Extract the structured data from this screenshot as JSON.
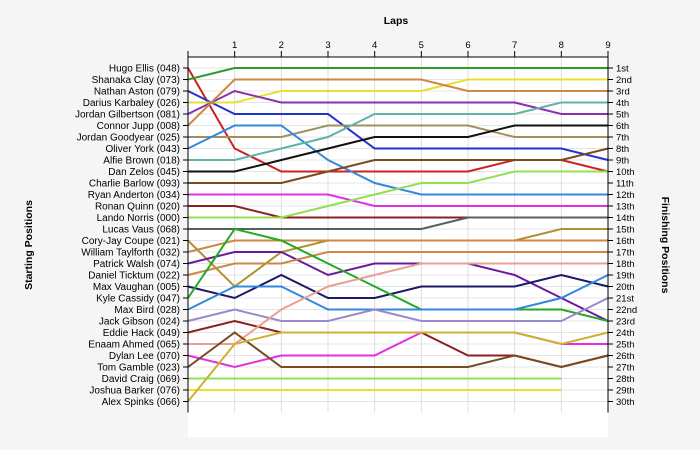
{
  "chart_data": {
    "type": "line",
    "title": "",
    "xlabel": "Laps",
    "ylabel_left": "Starting Positions",
    "ylabel_right": "Finishing Positions",
    "x_ticks": [
      1,
      2,
      3,
      4,
      5,
      6,
      7,
      8,
      9
    ],
    "xlim": [
      0,
      9
    ],
    "ylim": [
      1,
      30
    ],
    "grid": true,
    "finishing_positions": [
      "1st",
      "2nd",
      "3rd",
      "4th",
      "5th",
      "6th",
      "7th",
      "8th",
      "9th",
      "10th",
      "11th",
      "12th",
      "13th",
      "14th",
      "15th",
      "16th",
      "17th",
      "18th",
      "19th",
      "20th",
      "21st",
      "22nd",
      "23rd",
      "24th",
      "25th",
      "26th",
      "27th",
      "28th",
      "29th",
      "30th"
    ],
    "series": [
      {
        "name": "Hugo Ellis (048)",
        "color": "#cc2222",
        "values": [
          1,
          8,
          10,
          10,
          10,
          10,
          10,
          9,
          9,
          10
        ]
      },
      {
        "name": "Shanaka Clay (073)",
        "color": "#2e9a2e",
        "values": [
          2,
          1,
          1,
          1,
          1,
          1,
          1,
          1,
          1,
          1
        ]
      },
      {
        "name": "Nathan Aston (079)",
        "color": "#2233cc",
        "values": [
          3,
          5,
          5,
          5,
          8,
          8,
          8,
          8,
          8,
          9
        ]
      },
      {
        "name": "Darius Karbaley (026)",
        "color": "#e8e030",
        "values": [
          4,
          4,
          3,
          3,
          3,
          3,
          2,
          2,
          2,
          2
        ]
      },
      {
        "name": "Jordan Gilbertson (081)",
        "color": "#8b2eb0",
        "values": [
          5,
          3,
          4,
          4,
          4,
          4,
          4,
          4,
          5,
          5
        ]
      },
      {
        "name": "Connor Jupp (008)",
        "color": "#cc8844",
        "values": [
          6,
          2,
          2,
          2,
          2,
          2,
          3,
          3,
          3,
          3
        ]
      },
      {
        "name": "Jordan Goodyear (025)",
        "color": "#a09060",
        "values": [
          7,
          7,
          7,
          6,
          6,
          6,
          6,
          7,
          7,
          7
        ]
      },
      {
        "name": "Oliver York (043)",
        "color": "#3388dd",
        "values": [
          8,
          6,
          6,
          9,
          11,
          12,
          12,
          12,
          12,
          12
        ]
      },
      {
        "name": "Alfie Brown (018)",
        "color": "#5fb3a8",
        "values": [
          9,
          9,
          8,
          7,
          5,
          5,
          5,
          5,
          4,
          4
        ]
      },
      {
        "name": "Dan Zelos (045)",
        "color": "#111111",
        "values": [
          10,
          10,
          9,
          8,
          7,
          7,
          7,
          6,
          6,
          6
        ]
      },
      {
        "name": "Charlie Barlow (093)",
        "color": "#7a4a20",
        "values": [
          11,
          11,
          11,
          10,
          9,
          9,
          9,
          9,
          9,
          8
        ]
      },
      {
        "name": "Ryan Anderton (034)",
        "color": "#e030e0",
        "values": [
          12,
          12,
          12,
          12,
          13,
          13,
          13,
          13,
          13,
          13
        ]
      },
      {
        "name": "Ronan Quinn (020)",
        "color": "#8b2020",
        "values": [
          13,
          13,
          14,
          14,
          14,
          14,
          14,
          14,
          14,
          14
        ]
      },
      {
        "name": "Lando Norris (000)",
        "color": "#90e050",
        "values": [
          14,
          14,
          14,
          13,
          12,
          11,
          11,
          10,
          10,
          10
        ]
      },
      {
        "name": "Lucas Vaus (068)",
        "color": "#556060",
        "values": [
          15,
          15,
          15,
          15,
          15,
          15,
          14,
          14,
          14,
          14
        ]
      },
      {
        "name": "Cory-Jay Coupe (021)",
        "color": "#b09030",
        "values": [
          16,
          20,
          17,
          16,
          16,
          16,
          16,
          16,
          15,
          15
        ]
      },
      {
        "name": "William Taylforth (032)",
        "color": "#cc8844",
        "values": [
          17,
          16,
          16,
          16,
          16,
          16,
          16,
          16,
          16,
          16
        ]
      },
      {
        "name": "Patrick Walsh (074)",
        "color": "#6a1aa0",
        "values": [
          18,
          17,
          17,
          19,
          18,
          18,
          18,
          19,
          21,
          23
        ]
      },
      {
        "name": "Daniel Ticktum (022)",
        "color": "#cc8844",
        "values": [
          19,
          18,
          18,
          17,
          17,
          17,
          17,
          17,
          17,
          17
        ]
      },
      {
        "name": "Max Vaughan (005)",
        "color": "#1a1a66",
        "values": [
          20,
          21,
          19,
          21,
          21,
          20,
          20,
          20,
          19,
          20
        ]
      },
      {
        "name": "Kyle Cassidy (047)",
        "color": "#22aa22",
        "values": [
          21,
          15,
          16,
          18,
          20,
          22,
          22,
          22,
          22,
          23
        ]
      },
      {
        "name": "Max Bird (028)",
        "color": "#3388dd",
        "values": [
          22,
          20,
          20,
          22,
          22,
          22,
          22,
          22,
          21,
          19
        ]
      },
      {
        "name": "Jack Gibson (024)",
        "color": "#9988cc",
        "values": [
          23,
          22,
          23,
          23,
          22,
          23,
          23,
          23,
          23,
          21
        ]
      },
      {
        "name": "Eddie Hack (049)",
        "color": "#8b2020",
        "values": [
          24,
          23,
          24,
          24,
          24,
          24,
          26,
          26,
          27,
          26
        ]
      },
      {
        "name": "Enaam Ahmed (065)",
        "color": "#e8a090",
        "values": [
          25,
          25,
          22,
          20,
          19,
          18,
          18,
          18,
          18,
          18
        ]
      },
      {
        "name": "Dylan Lee (070)",
        "color": "#e030e0",
        "values": [
          26,
          27,
          26,
          26,
          26,
          24,
          24,
          24,
          25,
          25
        ]
      },
      {
        "name": "Tom Gamble (023)",
        "color": "#7a4a20",
        "values": [
          27,
          24,
          27,
          27,
          27,
          27,
          27,
          26,
          27,
          26
        ]
      },
      {
        "name": "David Craig (069)",
        "color": "#90e050",
        "values": [
          28,
          28,
          28,
          28,
          28,
          28,
          28,
          28,
          28
        ]
      },
      {
        "name": "Joshua Barker (076)",
        "color": "#e8e030",
        "values": [
          29,
          29,
          29,
          29,
          29,
          29,
          29,
          29,
          29
        ]
      },
      {
        "name": "Alex Spinks (066)",
        "color": "#d0b030",
        "values": [
          30,
          25,
          24,
          24,
          24,
          24,
          24,
          24,
          25,
          24
        ]
      }
    ]
  }
}
